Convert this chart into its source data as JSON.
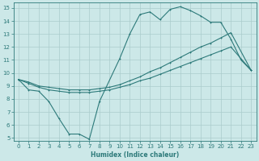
{
  "bg_color": "#cce8e8",
  "grid_color": "#aacccc",
  "line_color": "#2d7a7a",
  "xlabel": "Humidex (Indice chaleur)",
  "xlim": [
    -0.5,
    23.5
  ],
  "ylim": [
    4.8,
    15.4
  ],
  "xticks": [
    0,
    1,
    2,
    3,
    4,
    5,
    6,
    7,
    8,
    9,
    10,
    11,
    12,
    13,
    14,
    15,
    16,
    17,
    18,
    19,
    20,
    21,
    22,
    23
  ],
  "yticks": [
    5,
    6,
    7,
    8,
    9,
    10,
    11,
    12,
    13,
    14,
    15
  ],
  "curve1_x": [
    0,
    1,
    2,
    3,
    4,
    5,
    6,
    7,
    8,
    10,
    11,
    12,
    13,
    14,
    15,
    16,
    17,
    18,
    19,
    20,
    21,
    22,
    23
  ],
  "curve1_y": [
    9.5,
    8.7,
    8.6,
    7.8,
    6.5,
    5.3,
    5.3,
    4.9,
    7.8,
    11.1,
    13.0,
    14.5,
    14.7,
    14.1,
    14.9,
    15.1,
    14.8,
    14.4,
    13.9,
    13.9,
    12.6,
    11.0,
    10.2
  ],
  "curve2_x": [
    0,
    1,
    2,
    3,
    4,
    5,
    6,
    7,
    8,
    9,
    10,
    11,
    12,
    13,
    14,
    15,
    16,
    17,
    18,
    19,
    20,
    21,
    23
  ],
  "curve2_y": [
    9.5,
    9.3,
    9.0,
    8.9,
    8.8,
    8.7,
    8.7,
    8.7,
    8.8,
    8.9,
    9.1,
    9.4,
    9.7,
    10.1,
    10.4,
    10.8,
    11.2,
    11.6,
    12.0,
    12.3,
    12.7,
    13.1,
    10.2
  ],
  "curve3_x": [
    0,
    1,
    2,
    3,
    4,
    5,
    6,
    7,
    8,
    9,
    10,
    11,
    12,
    13,
    14,
    15,
    16,
    17,
    18,
    19,
    20,
    21,
    23
  ],
  "curve3_y": [
    9.5,
    9.2,
    8.9,
    8.7,
    8.6,
    8.5,
    8.5,
    8.5,
    8.6,
    8.7,
    8.9,
    9.1,
    9.4,
    9.6,
    9.9,
    10.2,
    10.5,
    10.8,
    11.1,
    11.4,
    11.7,
    12.0,
    10.2
  ]
}
